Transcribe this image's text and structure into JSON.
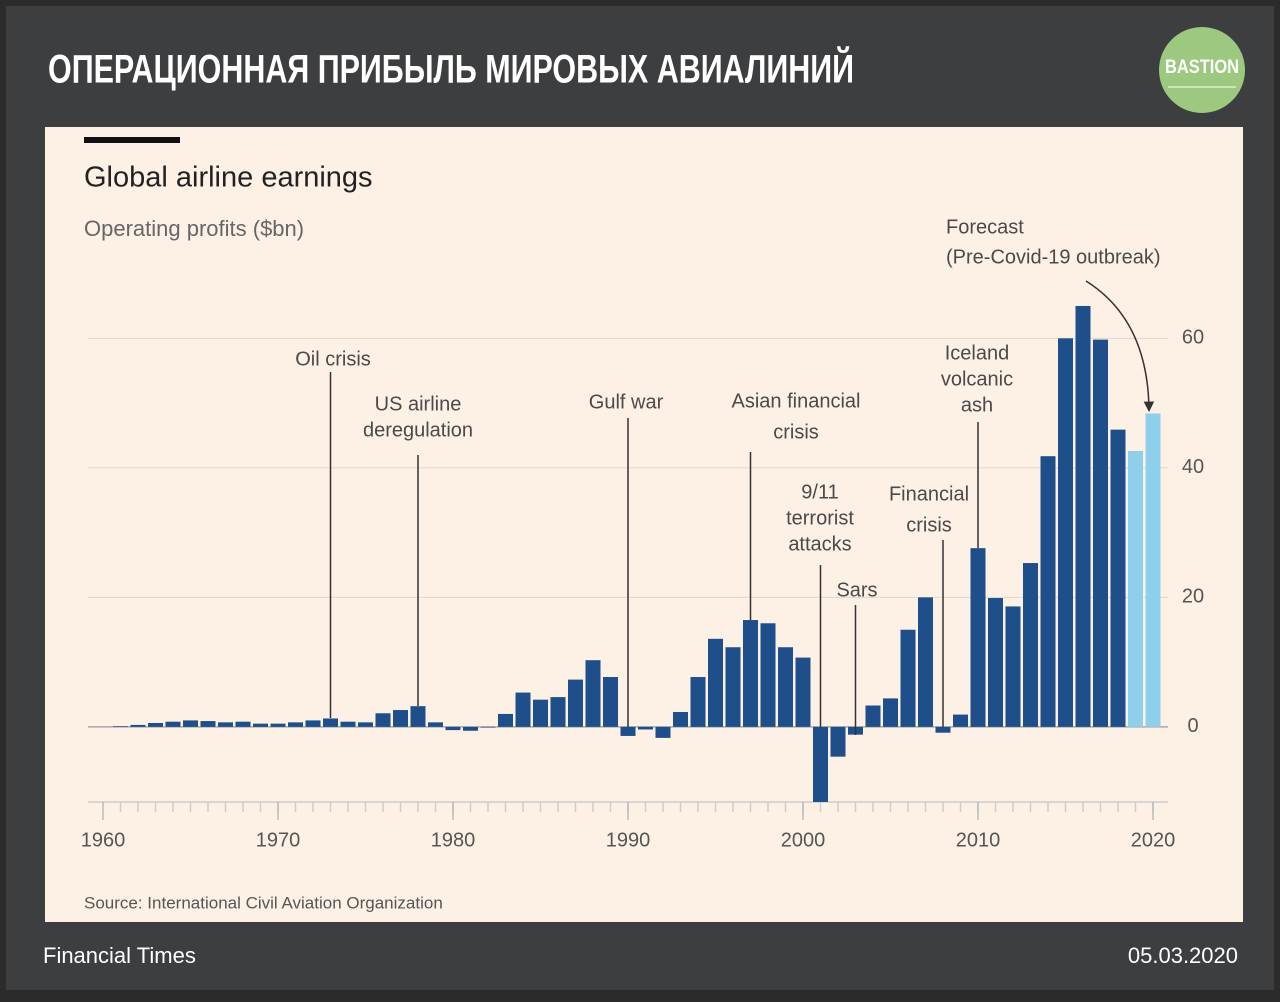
{
  "header": {
    "title": "ОПЕРАЦИОННАЯ ПРИБЫЛЬ МИРОВЫХ АВИАЛИНИЙ",
    "logo": "BASTION"
  },
  "footer": {
    "publisher": "Financial Times",
    "date": "05.03.2020"
  },
  "chart_data": {
    "type": "bar",
    "title": "Global airline earnings",
    "subtitle": "Operating profits ($bn)",
    "source": "Source: International Civil Aviation Organization",
    "series": [
      {
        "color": "#1f4f8b",
        "x": [
          1961,
          1962,
          1963,
          1964,
          1965,
          1966,
          1967,
          1968,
          1969,
          1970,
          1971,
          1972,
          1973,
          1974,
          1975,
          1976,
          1977,
          1978,
          1979,
          1980,
          1981,
          1982,
          1983,
          1984,
          1985,
          1986,
          1987,
          1988,
          1989,
          1990,
          1991,
          1992,
          1993,
          1994,
          1995,
          1996,
          1997,
          1998,
          1999,
          2000,
          2001,
          2002,
          2003,
          2004,
          2005,
          2006,
          2007,
          2008,
          2009,
          2010,
          2011,
          2012,
          2013,
          2014,
          2015,
          2016,
          2017,
          2018
        ],
        "values": [
          0.1,
          0.3,
          0.6,
          0.8,
          1.0,
          0.9,
          0.7,
          0.8,
          0.5,
          0.5,
          0.7,
          1.0,
          1.3,
          0.8,
          0.7,
          2.1,
          2.6,
          3.2,
          0.7,
          -0.5,
          -0.6,
          -0.1,
          2.0,
          5.3,
          4.2,
          4.6,
          7.3,
          10.3,
          7.7,
          -1.4,
          -0.4,
          -1.7,
          2.3,
          7.7,
          13.6,
          12.3,
          16.5,
          16.0,
          12.3,
          10.7,
          -11.6,
          -4.6,
          -1.2,
          3.3,
          4.4,
          15.0,
          20.0,
          -0.9,
          1.9,
          27.6,
          19.9,
          18.6,
          25.3,
          41.8,
          60.0,
          65.0,
          59.8,
          45.9
        ]
      },
      {
        "color": "#8ed0ec",
        "x": [
          2019,
          2020
        ],
        "values": [
          42.6,
          48.4
        ]
      }
    ],
    "annotations": [
      {
        "lines": [
          "Oil crisis"
        ],
        "x": 1973
      },
      {
        "lines": [
          "US airline",
          "deregulation"
        ],
        "x": 1978
      },
      {
        "lines": [
          "Gulf war"
        ],
        "x": 1990
      },
      {
        "lines": [
          "Asian financial",
          "crisis"
        ],
        "x": 1997
      },
      {
        "lines": [
          "9/11",
          "terrorist",
          "attacks"
        ],
        "x": 2001
      },
      {
        "lines": [
          "Sars"
        ],
        "x": 2003
      },
      {
        "lines": [
          "Financial",
          "crisis"
        ],
        "x": 2008
      },
      {
        "lines": [
          "Iceland",
          "volcanic",
          "ash"
        ],
        "x": 2010
      },
      {
        "lines": [
          "Forecast",
          "(Pre-Covid-19 outbreak)"
        ],
        "x": 2020
      }
    ],
    "xlim": [
      1959,
      2021
    ],
    "xticks": [
      1960,
      1970,
      1980,
      1990,
      2000,
      2010,
      2020
    ],
    "ylim": [
      -11.6,
      67
    ],
    "yticks": [
      0,
      20,
      40,
      60
    ],
    "grid": true
  }
}
